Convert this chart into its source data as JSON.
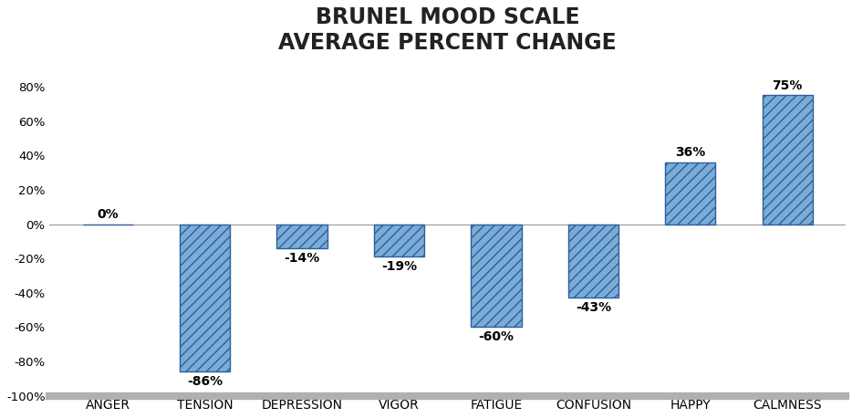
{
  "categories": [
    "ANGER",
    "TENSION",
    "DEPRESSION",
    "VIGOR",
    "FATIGUE",
    "CONFUSION",
    "HAPPY",
    "CALMNESS"
  ],
  "values": [
    0,
    -86,
    -14,
    -19,
    -60,
    -43,
    36,
    75
  ],
  "bar_color": "#7aacd6",
  "bar_edge_color": "#2c5f9e",
  "hatch": "///",
  "title_line1": "BRUNEL MOOD SCALE",
  "title_line2": "AVERAGE PERCENT CHANGE",
  "title_fontsize": 17,
  "label_fontsize": 9.5,
  "tick_fontsize": 9.5,
  "value_fontsize": 10,
  "ylim": [
    -105,
    93
  ],
  "yticks": [
    -100,
    -80,
    -60,
    -40,
    -20,
    0,
    20,
    40,
    60,
    80
  ],
  "ytick_labels": [
    "-100%",
    "-80%",
    "-60%",
    "-40%",
    "-20%",
    "0%",
    "20%",
    "40%",
    "60%",
    "80%"
  ],
  "background_color": "#ffffff",
  "bar_width": 0.52
}
